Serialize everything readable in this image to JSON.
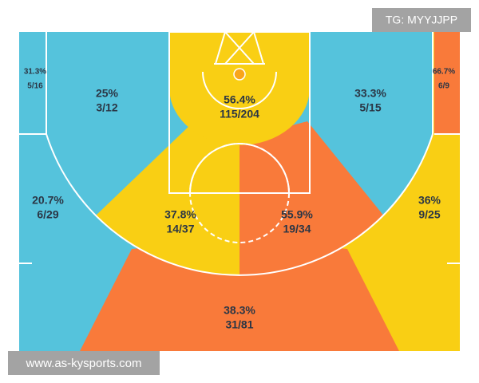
{
  "watermark": "TG: MYYJJPP",
  "footer": "www.as-kysports.com",
  "zones": [
    {
      "pct": "31.3%",
      "shots": "5/16"
    },
    {
      "pct": "25%",
      "shots": "3/12"
    },
    {
      "pct": "56.4%",
      "shots": "115/204"
    },
    {
      "pct": "33.3%",
      "shots": "5/15"
    },
    {
      "pct": "66.7%",
      "shots": "6/9"
    },
    {
      "pct": "20.7%",
      "shots": "6/29"
    },
    {
      "pct": "37.8%",
      "shots": "14/37"
    },
    {
      "pct": "55.9%",
      "shots": "19/34"
    },
    {
      "pct": "36%",
      "shots": "9/25"
    },
    {
      "pct": "38.3%",
      "shots": "31/81"
    }
  ]
}
